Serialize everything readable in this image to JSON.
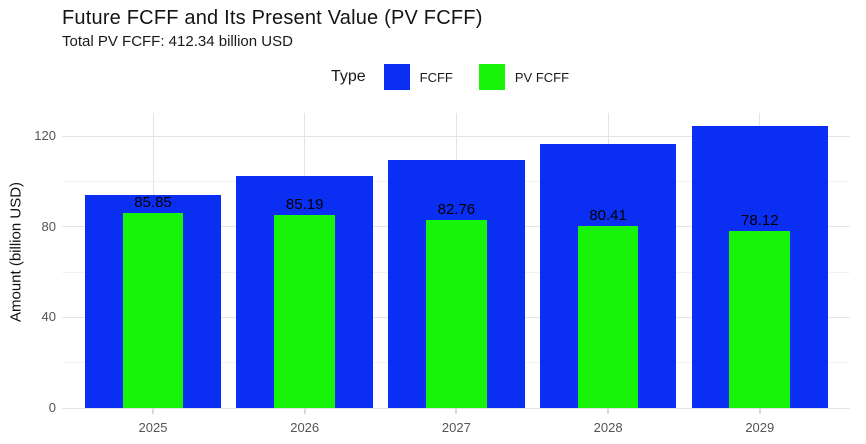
{
  "title": "Future FCFF and Its Present Value (PV FCFF)",
  "subtitle": "Total PV FCFF: 412.34 billion USD",
  "legend": {
    "title": "Type",
    "items": [
      {
        "label": "FCFF",
        "color": "#0a2ff2"
      },
      {
        "label": "PV FCFF",
        "color": "#18f409"
      }
    ]
  },
  "chart_data": {
    "type": "bar",
    "title": "Future FCFF and Its Present Value (PV FCFF)",
    "subtitle": "Total PV FCFF: 412.34 billion USD",
    "categories": [
      "2025",
      "2026",
      "2027",
      "2028",
      "2029"
    ],
    "series": [
      {
        "name": "FCFF",
        "color": "#0a2ff2",
        "values": [
          94.2,
          102.6,
          109.3,
          116.6,
          124.3
        ],
        "values_estimated_from_axis": true,
        "data_labels": []
      },
      {
        "name": "PV FCFF",
        "color": "#18f409",
        "values": [
          85.85,
          85.19,
          82.76,
          80.41,
          78.12
        ],
        "values_estimated_from_axis": false,
        "data_labels": [
          "85.85",
          "85.19",
          "82.76",
          "80.41",
          "78.12"
        ]
      }
    ],
    "total_pv_fcff": 412.34,
    "xlabel": "",
    "ylabel": "Amount (billion USD)",
    "yticks": [
      0,
      40,
      80,
      120
    ],
    "yticks_minor": [
      20,
      60,
      100
    ],
    "ylim": [
      0,
      130.1
    ],
    "grid": true,
    "legend_position": "top",
    "bar_style": "overlaid"
  }
}
